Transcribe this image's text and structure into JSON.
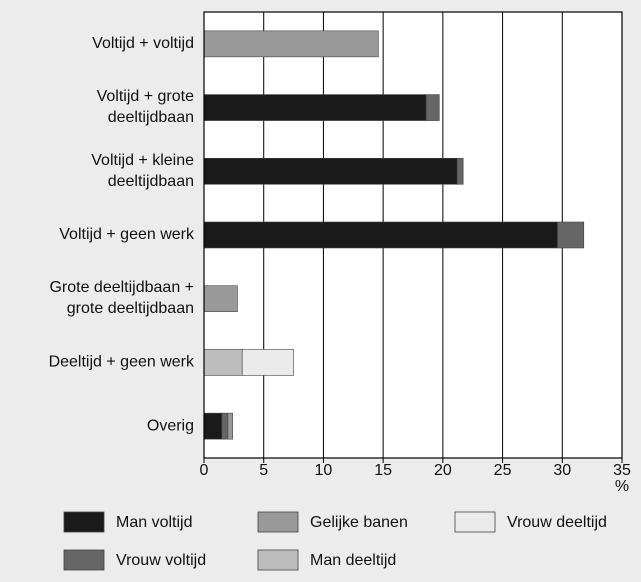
{
  "chart_data": {
    "type": "stacked_barh",
    "categories": [
      "Voltijd + voltijd",
      "Voltijd + grote\ndeeltijdbaan",
      "Voltijd + kleine\ndeeltijdbaan",
      "Voltijd + geen werk",
      "Grote deeltijdbaan +\ngrote deeltijdbaan",
      "Deeltijd + geen werk",
      "Overig"
    ],
    "series": [
      {
        "name": "Man voltijd",
        "color": "#1a1a1a",
        "values": [
          null,
          18.6,
          21.2,
          29.6,
          null,
          null,
          1.5
        ]
      },
      {
        "name": "Vrouw voltijd",
        "color": "#666666",
        "values": [
          null,
          1.1,
          0.5,
          2.2,
          null,
          null,
          0.5
        ]
      },
      {
        "name": "Gelijke banen",
        "color": "#999999",
        "values": [
          14.6,
          null,
          null,
          null,
          2.8,
          null,
          0.4
        ]
      },
      {
        "name": "Man deeltijd",
        "color": "#bdbdbd",
        "values": [
          null,
          null,
          null,
          null,
          null,
          3.2,
          null
        ]
      },
      {
        "name": "Vrouw deeltijd",
        "color": "#ebebeb",
        "values": [
          null,
          null,
          null,
          null,
          null,
          4.3,
          null
        ]
      }
    ],
    "xlim": [
      0,
      35
    ],
    "xticks": [
      0,
      5,
      10,
      15,
      20,
      25,
      30,
      35
    ],
    "x_unit": "%",
    "grid": true
  }
}
